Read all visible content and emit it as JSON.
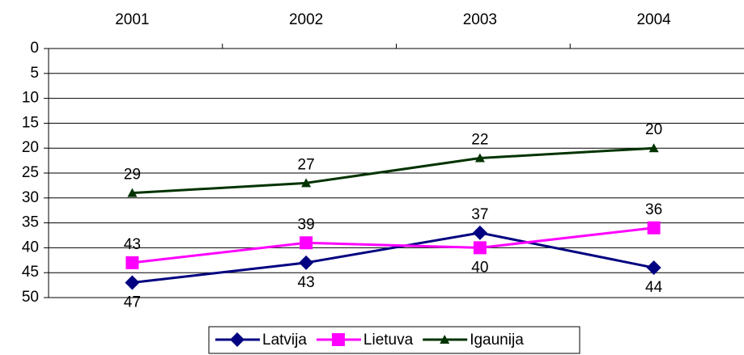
{
  "chart_data": {
    "type": "line",
    "categories": [
      "2001",
      "2002",
      "2003",
      "2004"
    ],
    "series": [
      {
        "name": "Latvija",
        "color": "#000080",
        "marker": "diamond",
        "values": [
          47,
          43,
          37,
          44
        ]
      },
      {
        "name": "Lietuva",
        "color": "#ff00ff",
        "marker": "square",
        "values": [
          43,
          39,
          40,
          36
        ]
      },
      {
        "name": "Igaunija",
        "color": "#003300",
        "marker": "triangle",
        "values": [
          29,
          27,
          22,
          20
        ]
      }
    ],
    "ylim": [
      0,
      50
    ],
    "y_reversed": true,
    "yticks": [
      0,
      5,
      10,
      15,
      20,
      25,
      30,
      35,
      40,
      45,
      50
    ],
    "grid": true,
    "legend": "bottom"
  }
}
